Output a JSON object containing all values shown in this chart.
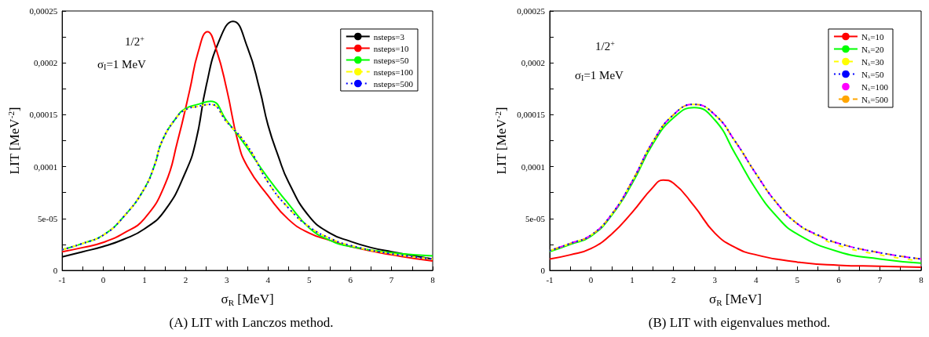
{
  "chart_data": [
    {
      "type": "line",
      "title": "(A) LIT with Lanczos method.",
      "xlabel": "σ$_{R}$ [MeV]",
      "ylabel": "LIT [MeV$^{-2}$]",
      "annotations": [
        "1/2$^{+}$",
        "σ$_{I}$=1 MeV"
      ],
      "xlim": [
        -1,
        8
      ],
      "xticks": [
        -1,
        {
          "value": -0.5,
          "label": null
        },
        0,
        {
          "value": 0.5,
          "label": null
        },
        1,
        {
          "value": 1.5,
          "label": null
        },
        2,
        {
          "value": 2.5,
          "label": null
        },
        3,
        {
          "value": 3.5,
          "label": null
        },
        4,
        {
          "value": 4.5,
          "label": null
        },
        5,
        {
          "value": 5.5,
          "label": null
        },
        6,
        {
          "value": 6.5,
          "label": null
        },
        7,
        {
          "value": 7.5,
          "label": null
        },
        8
      ],
      "ylim": [
        0,
        0.00025
      ],
      "yticks": [
        0,
        {
          "value": 2.5e-05,
          "label": null
        },
        {
          "value": 5e-05,
          "label": "5e-05"
        },
        {
          "value": 7.5e-05,
          "label": null
        },
        {
          "value": 0.0001,
          "label": "0,0001"
        },
        {
          "value": 0.000125,
          "label": null
        },
        {
          "value": 0.00015,
          "label": "0,00015"
        },
        {
          "value": 0.000175,
          "label": null
        },
        {
          "value": 0.0002,
          "label": "0,0002"
        },
        {
          "value": 0.000225,
          "label": null
        },
        {
          "value": 0.00025,
          "label": "0,00025"
        }
      ],
      "legend": "top right",
      "marker": "none",
      "series": [
        {
          "name": "nsteps=3",
          "color": "#000000",
          "line_style": "solid",
          "x": [
            -1,
            -0.5,
            0,
            0.5,
            1,
            1.5,
            2,
            2.25,
            2.5,
            2.8,
            3.15,
            3.5,
            3.8,
            4,
            4.25,
            4.5,
            5,
            5.5,
            6,
            6.5,
            7,
            8
          ],
          "values": [
            1.3e-05,
            1.8e-05,
            2.3e-05,
            3e-05,
            4e-05,
            5.8e-05,
            9.5e-05,
            0.000125,
            0.000178,
            0.00022,
            0.00024,
            0.000215,
            0.000174,
            0.00014,
            0.00011,
            8.5e-05,
            5.2e-05,
            3.6e-05,
            2.8e-05,
            2.2e-05,
            1.8e-05,
            1.1e-05
          ]
        },
        {
          "name": "nsteps=10",
          "color": "#ff0000",
          "line_style": "solid",
          "x": [
            -1,
            -0.5,
            0,
            0.5,
            1,
            1.5,
            1.8,
            2.1,
            2.3,
            2.53,
            2.75,
            3,
            3.27,
            3.5,
            4,
            4.5,
            5,
            5.5,
            6,
            7,
            8
          ],
          "values": [
            1.8e-05,
            2.2e-05,
            2.7e-05,
            3.6e-05,
            5e-05,
            8.3e-05,
            0.000124,
            0.000174,
            0.00021,
            0.00023,
            0.000212,
            0.000174,
            0.000124,
            0.0001,
            7.2e-05,
            4.9e-05,
            3.6e-05,
            2.9e-05,
            2.3e-05,
            1.5e-05,
            9e-06
          ]
        },
        {
          "name": "nsteps=50",
          "color": "#00ff00",
          "line_style": "solid",
          "x": [
            -1,
            -0.5,
            0,
            0.5,
            1,
            1.25,
            1.42,
            1.77,
            2,
            2.3,
            2.61,
            3,
            3.39,
            4,
            4.5,
            5,
            5.5,
            6,
            7,
            8
          ],
          "values": [
            2e-05,
            2.6e-05,
            3.4e-05,
            5.2e-05,
            7.9e-05,
            0.000102,
            0.000124,
            0.000147,
            0.000156,
            0.00016,
            0.000163,
            0.000144,
            0.000124,
            8.9e-05,
            6.4e-05,
            4.1e-05,
            2.9e-05,
            2.3e-05,
            1.7e-05,
            1.4e-05
          ]
        },
        {
          "name": "nsteps=100",
          "color": "#ffff00",
          "line_style": "dashed",
          "x": [
            -1,
            -0.5,
            0,
            0.5,
            1,
            1.25,
            1.42,
            1.77,
            2,
            2.3,
            2.6,
            3,
            3.5,
            4,
            4.5,
            5,
            5.5,
            6,
            7,
            8
          ],
          "values": [
            2e-05,
            2.6e-05,
            3.4e-05,
            5.2e-05,
            7.9e-05,
            0.000102,
            0.000124,
            0.000147,
            0.000155,
            0.000158,
            0.00016,
            0.000143,
            0.00012,
            8.5e-05,
            6e-05,
            4.2e-05,
            3.1e-05,
            2.4e-05,
            1.6e-05,
            1.1e-05
          ]
        },
        {
          "name": "nsteps=500",
          "color": "#0000ff",
          "line_style": "dotted",
          "x": [
            -1,
            -0.5,
            0,
            0.5,
            1,
            1.25,
            1.42,
            1.77,
            2,
            2.3,
            2.6,
            3,
            3.5,
            4,
            4.5,
            5,
            5.5,
            6,
            7,
            8
          ],
          "values": [
            2e-05,
            2.6e-05,
            3.4e-05,
            5.2e-05,
            7.9e-05,
            0.000102,
            0.000124,
            0.000147,
            0.000155,
            0.000158,
            0.00016,
            0.000143,
            0.00012,
            8.5e-05,
            6e-05,
            4.2e-05,
            3.1e-05,
            2.4e-05,
            1.6e-05,
            1.1e-05
          ]
        }
      ]
    },
    {
      "type": "line",
      "title": "(B) LIT with eigenvalues method.",
      "xlabel": "σ$_{R}$ [MeV]",
      "ylabel": "LIT [MeV$^{-2}$]",
      "annotations": [
        "1/2$^{+}$",
        "σ$_{I}$=1 MeV"
      ],
      "xlim": [
        -1,
        8
      ],
      "xticks": [
        -1,
        {
          "value": -0.5,
          "label": null
        },
        0,
        {
          "value": 0.5,
          "label": null
        },
        1,
        {
          "value": 1.5,
          "label": null
        },
        2,
        {
          "value": 2.5,
          "label": null
        },
        3,
        {
          "value": 3.5,
          "label": null
        },
        4,
        {
          "value": 4.5,
          "label": null
        },
        5,
        {
          "value": 5.5,
          "label": null
        },
        6,
        {
          "value": 6.5,
          "label": null
        },
        7,
        {
          "value": 7.5,
          "label": null
        },
        8
      ],
      "ylim": [
        0,
        0.00025
      ],
      "yticks": [
        0,
        {
          "value": 2.5e-05,
          "label": null
        },
        {
          "value": 5e-05,
          "label": "5e-05"
        },
        {
          "value": 7.5e-05,
          "label": null
        },
        {
          "value": 0.0001,
          "label": "0,0001"
        },
        {
          "value": 0.000125,
          "label": null
        },
        {
          "value": 0.00015,
          "label": "0,00015"
        },
        {
          "value": 0.000175,
          "label": null
        },
        {
          "value": 0.0002,
          "label": "0,0002"
        },
        {
          "value": 0.000225,
          "label": null
        },
        {
          "value": 0.00025,
          "label": "0,00025"
        }
      ],
      "legend": "top right",
      "marker": "none",
      "series": [
        {
          "name": "N$_{λ}$=10",
          "color": "#ff0000",
          "line_style": "solid",
          "x": [
            -1,
            -0.5,
            0,
            0.5,
            1,
            1.5,
            1.75,
            2,
            2.5,
            3,
            3.5,
            4,
            5,
            6,
            7,
            8
          ],
          "values": [
            1.1e-05,
            1.5e-05,
            2.1e-05,
            3.5e-05,
            5.6e-05,
            8e-05,
            8.7e-05,
            8.4e-05,
            6.2e-05,
            3.6e-05,
            2.2e-05,
            1.5e-05,
            8e-06,
            5e-06,
            4e-06,
            3e-06
          ]
        },
        {
          "name": "N$_{λ}$=20",
          "color": "#00ff00",
          "line_style": "solid",
          "x": [
            -1,
            -0.5,
            0,
            0.5,
            1,
            1.5,
            2,
            2.5,
            3,
            3.5,
            4,
            4.5,
            5,
            6,
            7,
            8
          ],
          "values": [
            1.8e-05,
            2.5e-05,
            3.3e-05,
            5.3e-05,
            8.4e-05,
            0.000122,
            0.000147,
            0.000157,
            0.000145,
            0.000112,
            7.8e-05,
            5.2e-05,
            3.5e-05,
            1.8e-05,
            1.1e-05,
            7e-06
          ]
        },
        {
          "name": "N$_{λ}$=30",
          "color": "#ffff00",
          "line_style": "dashed",
          "x": [
            -1,
            -0.5,
            0,
            0.5,
            1,
            1.5,
            2,
            2.5,
            3,
            3.5,
            4,
            4.5,
            5,
            5.5,
            6,
            7,
            8
          ],
          "values": [
            1.9e-05,
            2.6e-05,
            3.4e-05,
            5.4e-05,
            8.6e-05,
            0.000124,
            0.00015,
            0.00016,
            0.00015,
            0.000124,
            9.3e-05,
            6.5e-05,
            4.5e-05,
            3.3e-05,
            2.4e-05,
            1.5e-05,
            9e-06
          ]
        },
        {
          "name": "N$_{λ}$=50",
          "color": "#0000ff",
          "line_style": "dotted",
          "x": [
            -1,
            -0.5,
            0,
            0.5,
            1,
            1.5,
            2,
            2.5,
            3,
            3.5,
            4,
            4.5,
            5,
            5.5,
            6,
            7,
            8
          ],
          "values": [
            1.9e-05,
            2.6e-05,
            3.4e-05,
            5.4e-05,
            8.6e-05,
            0.000124,
            0.00015,
            0.00016,
            0.00015,
            0.000124,
            9.3e-05,
            6.5e-05,
            4.5e-05,
            3.4e-05,
            2.6e-05,
            1.7e-05,
            1.1e-05
          ]
        },
        {
          "name": "N$_{λ}$=100",
          "color": "#ff00ff",
          "line_style": "dashed",
          "x": [
            -1,
            -0.5,
            0,
            0.5,
            1,
            1.5,
            2,
            2.5,
            3,
            3.5,
            4,
            4.5,
            5,
            5.5,
            6,
            7,
            8
          ],
          "values": [
            1.9e-05,
            2.6e-05,
            3.4e-05,
            5.4e-05,
            8.6e-05,
            0.000124,
            0.00015,
            0.00016,
            0.00015,
            0.000124,
            9.3e-05,
            6.5e-05,
            4.5e-05,
            3.4e-05,
            2.6e-05,
            1.7e-05,
            1.1e-05
          ]
        },
        {
          "name": "N$_{λ}$=500",
          "color": "#ffa500",
          "line_style": "dashed",
          "x": [
            -1,
            -0.5,
            0,
            0.5,
            1,
            1.5,
            2,
            2.5,
            3,
            3.5,
            4,
            4.5,
            5,
            5.5,
            6,
            7,
            8
          ],
          "values": [
            1.9e-05,
            2.6e-05,
            3.4e-05,
            5.4e-05,
            8.6e-05,
            0.000124,
            0.00015,
            0.00016,
            0.00015,
            0.000124,
            9.3e-05,
            6.5e-05,
            4.5e-05,
            3.4e-05,
            2.6e-05,
            1.7e-05,
            1.1e-05
          ]
        }
      ]
    }
  ]
}
